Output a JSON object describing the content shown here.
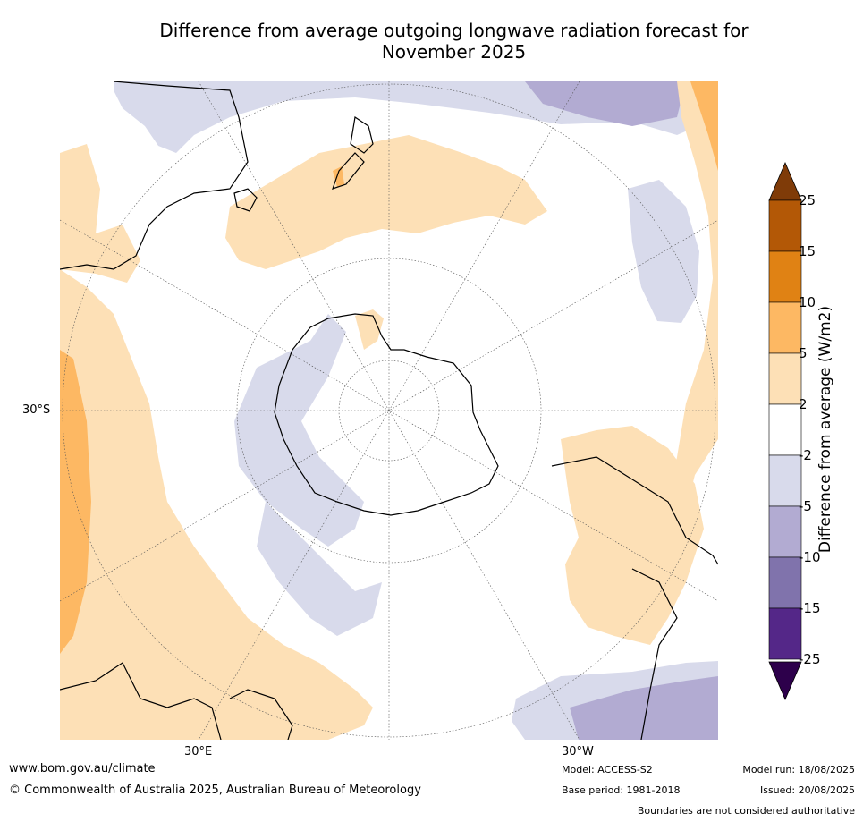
{
  "title_line1": "Difference from average outgoing longwave radiation forecast for",
  "title_line2": "November 2025",
  "map": {
    "projection": "south-polar-stereographic",
    "lat_label": "30°S",
    "lon_labels": [
      "30°E",
      "30°W"
    ],
    "colors": {
      "pos_2_5": "#fde0b6",
      "pos_5_10": "#fdb863",
      "pos_10_15": "#e08214",
      "pos_15_25": "#b35806",
      "pos_over": "#7f3b08",
      "neg_2_5": "#d8daeb",
      "neg_5_10": "#b2abd2",
      "neg_10_15": "#8073ac",
      "neg_15_25": "#542788",
      "neg_over": "#2d004b",
      "neutral": "#ffffff"
    }
  },
  "colorbar": {
    "title": "Difference from average (W/m2)",
    "ticks": [
      "25",
      "15",
      "10",
      "5",
      "2",
      "-2",
      "-5",
      "-10",
      "-15",
      "-25"
    ],
    "bins": [
      "#b35806",
      "#e08214",
      "#fdb863",
      "#fde0b6",
      "#ffffff",
      "#d8daeb",
      "#b2abd2",
      "#8073ac",
      "#542788"
    ],
    "top_extend_color": "#7f3b08",
    "bottom_extend_color": "#2d004b"
  },
  "footer": {
    "url": "www.bom.gov.au/climate",
    "copyright": "© Commonwealth of Australia 2025, Australian Bureau of Meteorology",
    "model": "Model: ACCESS-S2",
    "base_period": "Base period: 1981-2018",
    "model_run": "Model run: 18/08/2025",
    "issued": "Issued: 20/08/2025",
    "disclaimer": "Boundaries are not considered authoritative"
  }
}
